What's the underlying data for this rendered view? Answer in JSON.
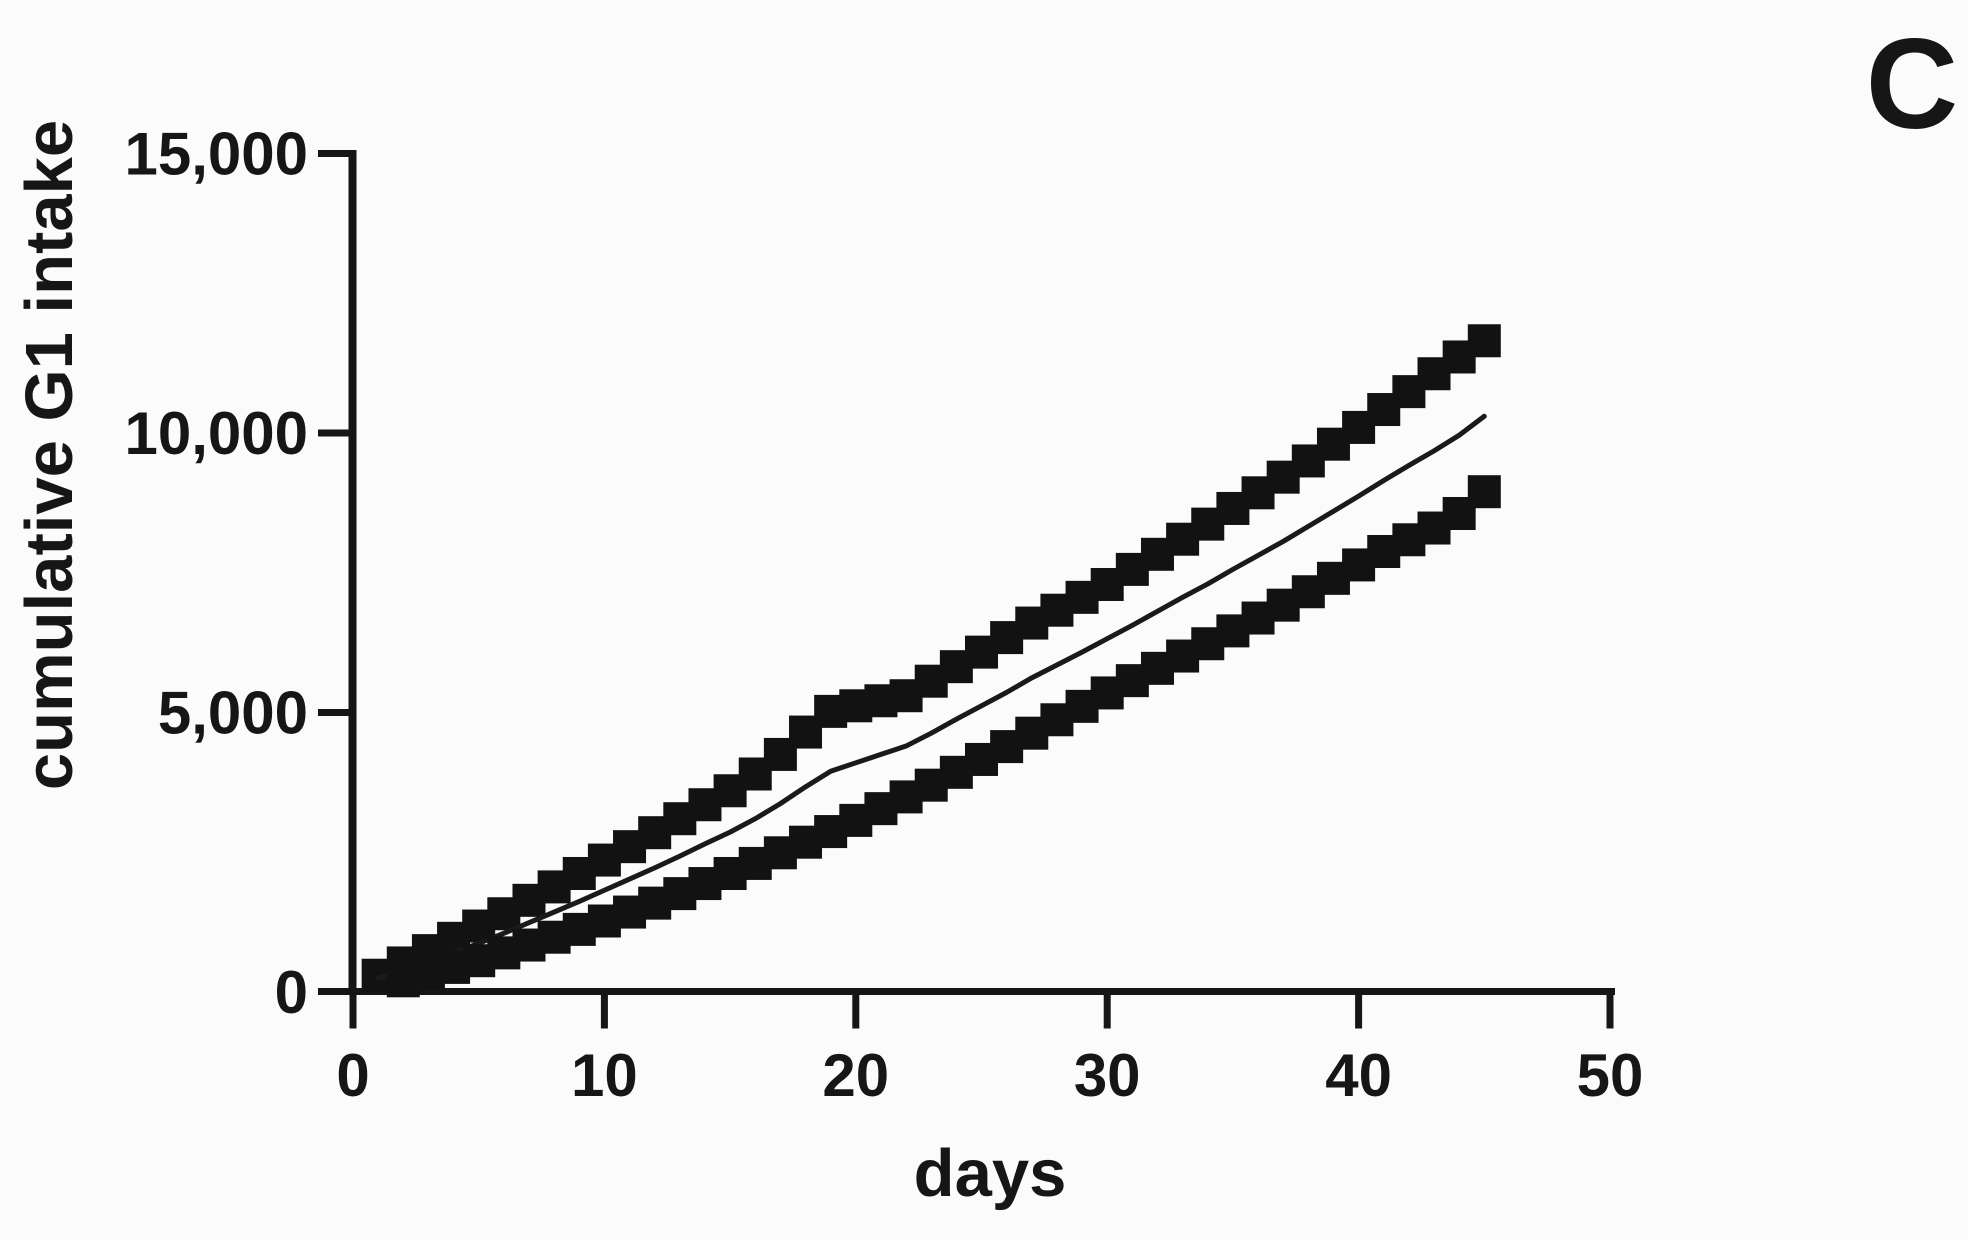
{
  "page": {
    "background": "#fbfbfb",
    "ink_color": "#161616"
  },
  "chart_data": {
    "type": "scatter",
    "panel_label": "C",
    "title": "",
    "xlabel": "days",
    "ylabel": "cumulative G1 intake",
    "xlim": [
      0,
      50
    ],
    "ylim": [
      0,
      15000
    ],
    "grid": false,
    "legend_position": "none",
    "x_ticks": [
      0,
      10,
      20,
      30,
      40,
      50
    ],
    "x_tick_labels": [
      "0",
      "10",
      "20",
      "30",
      "40",
      "50"
    ],
    "y_ticks": [
      0,
      5000,
      10000,
      15000
    ],
    "y_tick_labels": [
      "0",
      "5,000",
      "10,000",
      "15,000"
    ],
    "marker_color": "#121212",
    "line_color": "#1a1a1a",
    "x": [
      1,
      2,
      3,
      4,
      5,
      6,
      7,
      8,
      9,
      10,
      11,
      12,
      13,
      14,
      15,
      16,
      17,
      18,
      19,
      20,
      21,
      22,
      23,
      24,
      25,
      26,
      27,
      28,
      29,
      30,
      31,
      32,
      33,
      34,
      35,
      36,
      37,
      38,
      39,
      40,
      41,
      42,
      43,
      44,
      45
    ],
    "series": [
      {
        "name": "upper-squares",
        "render": "scatter",
        "marker": "filled-square",
        "values": [
          300,
          520,
          740,
          960,
          1180,
          1400,
          1640,
          1880,
          2120,
          2360,
          2600,
          2850,
          3100,
          3350,
          3600,
          3900,
          4250,
          4650,
          5020,
          5120,
          5210,
          5300,
          5560,
          5820,
          6080,
          6340,
          6600,
          6830,
          7060,
          7290,
          7560,
          7830,
          8100,
          8370,
          8650,
          8930,
          9210,
          9500,
          9800,
          10100,
          10420,
          10740,
          11060,
          11360,
          11650
        ]
      },
      {
        "name": "center-line",
        "render": "line",
        "marker": "none",
        "values": [
          250,
          360,
          530,
          700,
          870,
          1050,
          1240,
          1430,
          1620,
          1820,
          2020,
          2220,
          2430,
          2650,
          2860,
          3100,
          3370,
          3670,
          3950,
          4100,
          4250,
          4400,
          4630,
          4880,
          5120,
          5360,
          5620,
          5850,
          6080,
          6320,
          6560,
          6810,
          7060,
          7300,
          7560,
          7810,
          8060,
          8330,
          8600,
          8870,
          9150,
          9420,
          9680,
          9960,
          10300
        ]
      },
      {
        "name": "lower-squares",
        "render": "scatter",
        "marker": "filled-square",
        "values": [
          null,
          200,
          320,
          440,
          560,
          700,
          840,
          980,
          1120,
          1270,
          1430,
          1590,
          1760,
          1940,
          2120,
          2300,
          2490,
          2680,
          2870,
          3070,
          3280,
          3490,
          3700,
          3930,
          4160,
          4390,
          4630,
          4870,
          5110,
          5350,
          5570,
          5790,
          6010,
          6230,
          6460,
          6690,
          6920,
          7160,
          7400,
          7640,
          7880,
          8090,
          8300,
          8560,
          8950
        ]
      }
    ]
  }
}
